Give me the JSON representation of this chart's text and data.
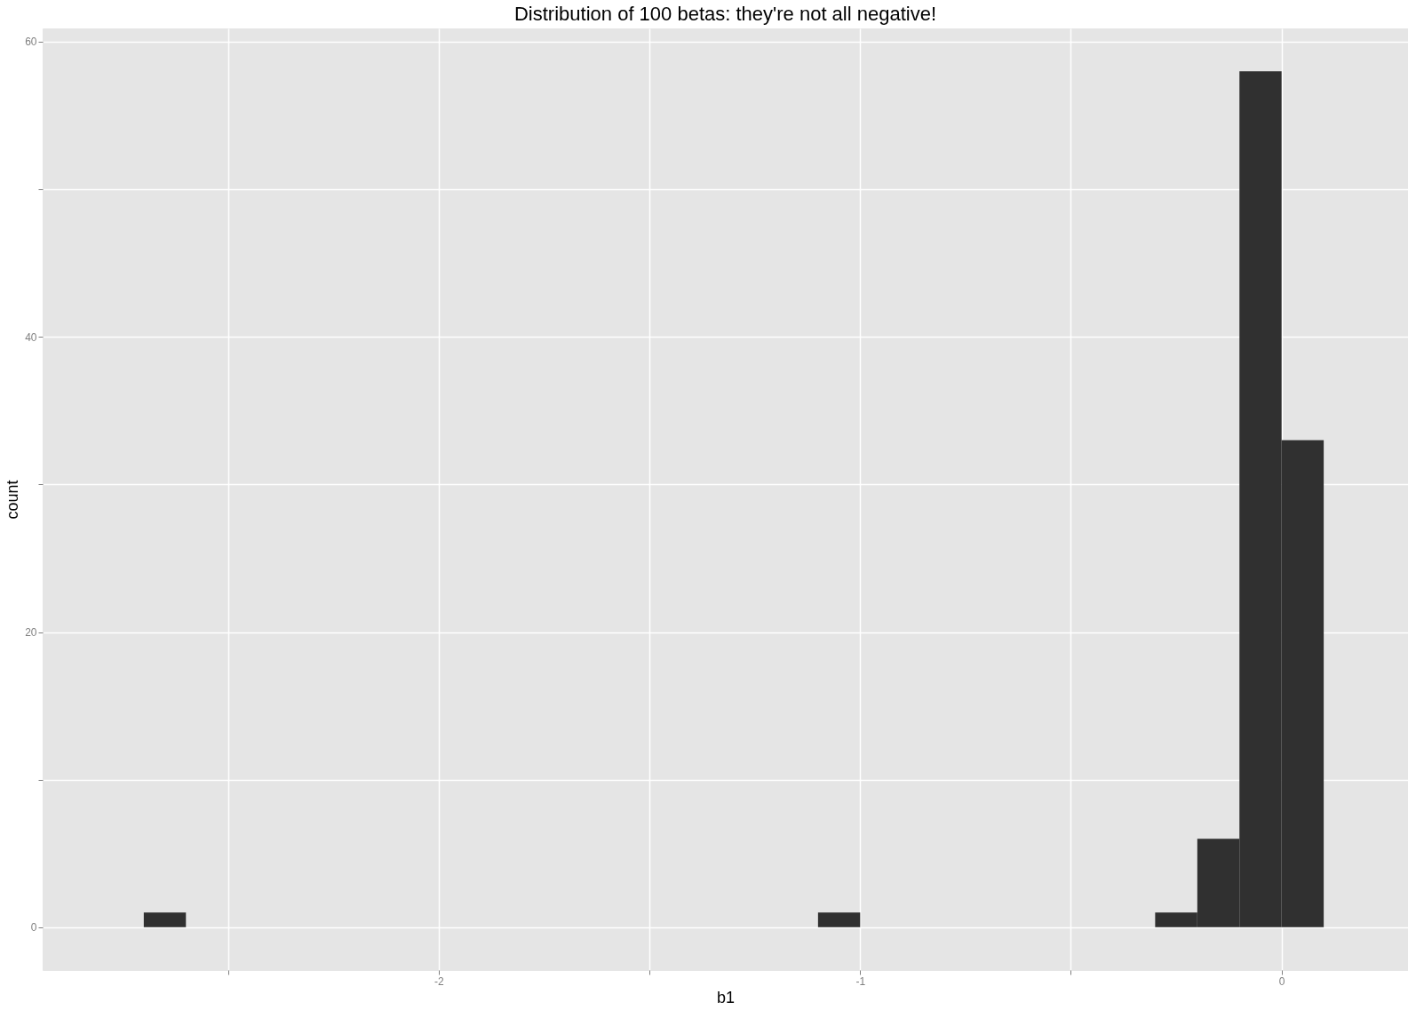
{
  "chart_data": {
    "type": "histogram",
    "title": "Distribution of 100 betas: they're not all negative!",
    "xlabel": "b1",
    "ylabel": "count",
    "bins": [
      -2.7,
      -2.6,
      -2.5,
      -2.4,
      -2.3,
      -2.2,
      -2.1,
      -2.0,
      -1.9,
      -1.8,
      -1.7,
      -1.6,
      -1.5,
      -1.4,
      -1.3,
      -1.2,
      -1.1,
      -1.0,
      -0.9,
      -0.8,
      -0.7,
      -0.6,
      -0.5,
      -0.4,
      -0.3,
      -0.2,
      -0.1,
      0.0,
      0.1
    ],
    "values": [
      1,
      0,
      0,
      0,
      0,
      0,
      0,
      0,
      0,
      0,
      0,
      0,
      0,
      0,
      0,
      0,
      1,
      0,
      0,
      0,
      0,
      0,
      0,
      0,
      1,
      6,
      58,
      33
    ],
    "color": "#303030",
    "xlim": [
      -2.94,
      0.3
    ],
    "ylim": [
      -2.9,
      60.9
    ],
    "xticks": [
      {
        "value": -2.5,
        "label": null
      },
      -2,
      {
        "value": -1.5,
        "label": null
      },
      -1,
      {
        "value": -0.5,
        "label": null
      },
      0
    ],
    "yticks": [
      0,
      {
        "value": 10,
        "label": null
      },
      20,
      {
        "value": 30,
        "label": null
      },
      40,
      {
        "value": 50,
        "label": null
      },
      60
    ],
    "grid": true
  }
}
